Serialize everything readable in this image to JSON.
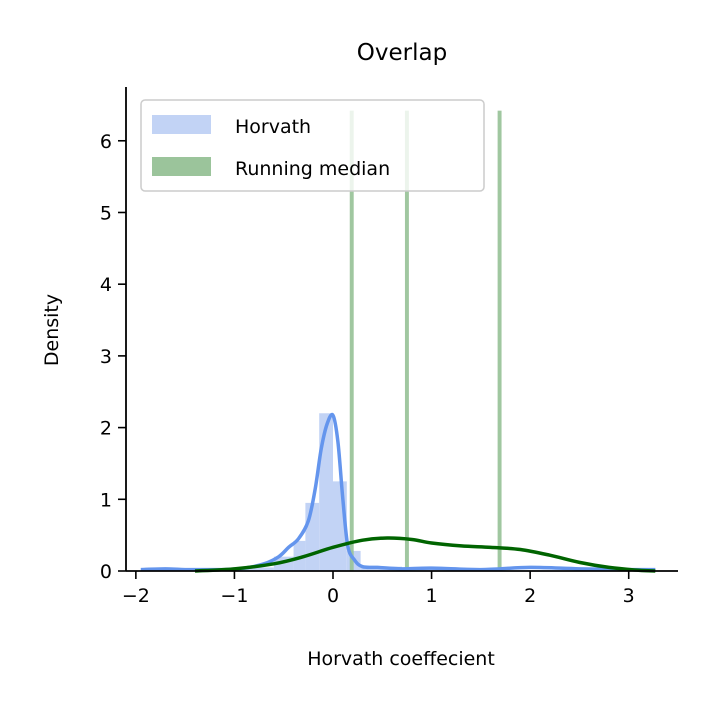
{
  "chart_data": {
    "type": "histogram",
    "title": "Overlap",
    "xlabel": "Horvath coeffecient",
    "ylabel": "Density",
    "xlim": [
      -2.1,
      3.5
    ],
    "ylim": [
      0,
      6.75
    ],
    "xticks": [
      -2,
      -1,
      0,
      1,
      2,
      3
    ],
    "xtick_labels": [
      "−2",
      "−1",
      "0",
      "1",
      "2",
      "3"
    ],
    "yticks": [
      0,
      1,
      2,
      3,
      4,
      5,
      6
    ],
    "ytick_labels": [
      "0",
      "1",
      "2",
      "3",
      "4",
      "5",
      "6"
    ],
    "grid": false,
    "legend_position": "top-left",
    "series": [
      {
        "name": "Horvath",
        "color": "#6495ED",
        "hist_color": "#c2d3f5",
        "bins": [
          {
            "x0": -1.95,
            "x1": -1.5,
            "density": 0.02
          },
          {
            "x0": -1.5,
            "x1": -1.0,
            "density": 0.02
          },
          {
            "x0": -1.0,
            "x1": -0.6,
            "density": 0.05
          },
          {
            "x0": -0.6,
            "x1": -0.4,
            "density": 0.2
          },
          {
            "x0": -0.4,
            "x1": -0.28,
            "density": 0.42
          },
          {
            "x0": -0.28,
            "x1": -0.14,
            "density": 0.95
          },
          {
            "x0": -0.14,
            "x1": 0.0,
            "density": 2.2
          },
          {
            "x0": 0.0,
            "x1": 0.14,
            "density": 1.25
          },
          {
            "x0": 0.14,
            "x1": 0.28,
            "density": 0.28
          },
          {
            "x0": 0.28,
            "x1": 0.7,
            "density": 0.06
          },
          {
            "x0": 0.7,
            "x1": 1.5,
            "density": 0.02
          },
          {
            "x0": 1.5,
            "x1": 3.27,
            "density": 0.01
          }
        ],
        "kde": {
          "x": [
            -1.95,
            -1.7,
            -1.5,
            -1.3,
            -1.1,
            -0.9,
            -0.7,
            -0.55,
            -0.45,
            -0.35,
            -0.25,
            -0.18,
            -0.12,
            -0.06,
            0.0,
            0.05,
            0.1,
            0.15,
            0.22,
            0.3,
            0.45,
            0.7,
            1.0,
            1.5,
            2.0,
            2.5,
            3.0,
            3.27
          ],
          "y": [
            0.02,
            0.03,
            0.02,
            0.02,
            0.02,
            0.04,
            0.1,
            0.2,
            0.33,
            0.45,
            0.7,
            1.15,
            1.7,
            2.05,
            2.17,
            1.8,
            1.0,
            0.35,
            0.15,
            0.06,
            0.05,
            0.03,
            0.04,
            0.02,
            0.05,
            0.03,
            0.02,
            0.02
          ]
        }
      },
      {
        "name": "Running median",
        "color": "#006400",
        "hist_color": "#9bc49b",
        "bins": [
          {
            "x0": 0.17,
            "x1": 0.21,
            "density": 6.42
          },
          {
            "x0": 0.73,
            "x1": 0.77,
            "density": 6.42
          },
          {
            "x0": 1.67,
            "x1": 1.71,
            "density": 6.42
          }
        ],
        "kde": {
          "x": [
            -1.4,
            -1.0,
            -0.6,
            -0.3,
            0.0,
            0.3,
            0.55,
            0.8,
            1.0,
            1.3,
            1.6,
            1.9,
            2.2,
            2.5,
            2.8,
            3.1,
            3.27
          ],
          "y": [
            0.0,
            0.03,
            0.1,
            0.2,
            0.33,
            0.43,
            0.46,
            0.44,
            0.39,
            0.35,
            0.33,
            0.3,
            0.22,
            0.12,
            0.05,
            0.01,
            0.0
          ]
        }
      }
    ]
  }
}
